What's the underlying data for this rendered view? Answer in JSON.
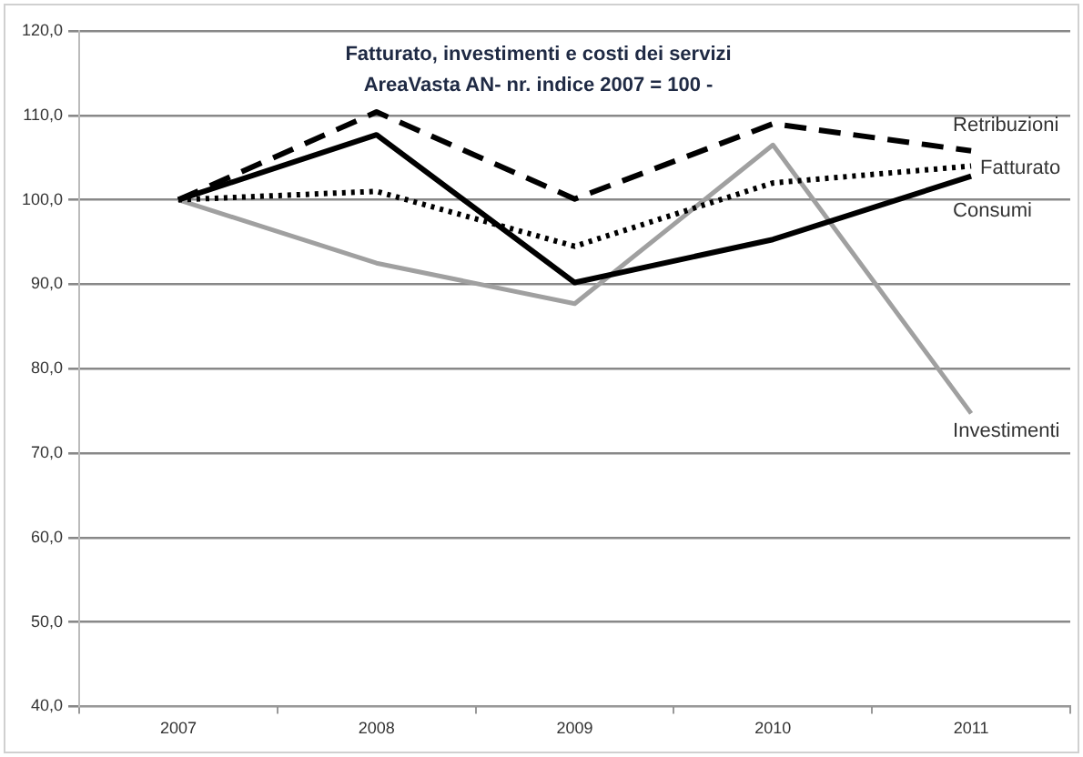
{
  "chart_data": {
    "type": "line",
    "title": "Fatturato, investimenti e costi dei servizi",
    "subtitle": "AreaVasta AN- nr. indice 2007 = 100 -",
    "categories": [
      "2007",
      "2008",
      "2009",
      "2010",
      "2011"
    ],
    "series": [
      {
        "name": "Retribuzioni",
        "color": "#000000",
        "line_style": "dashed",
        "values": [
          100,
          110.4,
          100.1,
          109,
          105.8
        ]
      },
      {
        "name": "Fatturato",
        "color": "#000000",
        "line_style": "dotted",
        "values": [
          100,
          101,
          94.5,
          102,
          104
        ]
      },
      {
        "name": "Consumi",
        "color": "#000000",
        "line_style": "solid",
        "values": [
          100,
          107.7,
          90.2,
          95.3,
          102.8
        ]
      },
      {
        "name": "Investimenti",
        "color": "#a0a0a0",
        "line_style": "solid",
        "values": [
          100,
          92.5,
          87.7,
          106.5,
          74.7
        ]
      }
    ],
    "ylim": [
      40,
      120
    ],
    "yticks": [
      {
        "value": 40,
        "label": "40,0"
      },
      {
        "value": 50,
        "label": "50,0"
      },
      {
        "value": 60,
        "label": "60,0"
      },
      {
        "value": 70,
        "label": "70,0"
      },
      {
        "value": 80,
        "label": "80,0"
      },
      {
        "value": 90,
        "label": "90,0"
      },
      {
        "value": 100,
        "label": "100,0"
      },
      {
        "value": 110,
        "label": "110,0"
      },
      {
        "value": 120,
        "label": "120,0"
      }
    ],
    "grid": "y",
    "legend": false,
    "marker": "none"
  }
}
